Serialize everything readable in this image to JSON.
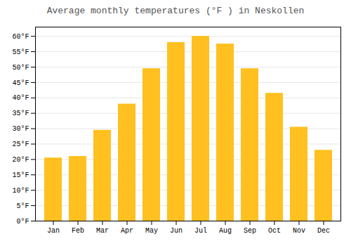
{
  "chart_data": {
    "type": "bar",
    "title": "Average monthly temperatures (°F ) in Neskollen",
    "categories": [
      "Jan",
      "Feb",
      "Mar",
      "Apr",
      "May",
      "Jun",
      "Jul",
      "Aug",
      "Sep",
      "Oct",
      "Nov",
      "Dec"
    ],
    "values": [
      20.5,
      21.0,
      29.5,
      38.0,
      49.5,
      58.0,
      60.0,
      57.5,
      49.5,
      41.5,
      30.5,
      23.0
    ],
    "color": "#FFC020",
    "ylim": [
      0,
      63
    ],
    "yticks": [
      {
        "value": 0,
        "label": "0°F"
      },
      {
        "value": 5,
        "label": "5°F"
      },
      {
        "value": 10,
        "label": "10°F"
      },
      {
        "value": 15,
        "label": "15°F"
      },
      {
        "value": 20,
        "label": "20°F"
      },
      {
        "value": 25,
        "label": "25°F"
      },
      {
        "value": 30,
        "label": "30°F"
      },
      {
        "value": 35,
        "label": "35°F"
      },
      {
        "value": 40,
        "label": "40°F"
      },
      {
        "value": 45,
        "label": "45°F"
      },
      {
        "value": 50,
        "label": "50°F"
      },
      {
        "value": 55,
        "label": "55°F"
      },
      {
        "value": 60,
        "label": "60°F"
      }
    ],
    "grid": true
  }
}
